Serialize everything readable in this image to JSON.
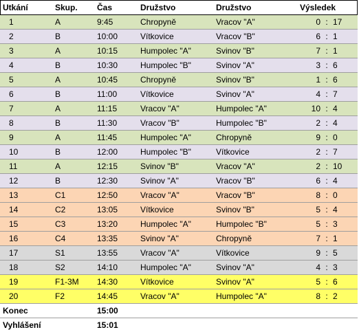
{
  "headers": {
    "match": "Utkání",
    "group": "Skup.",
    "time": "Čas",
    "team1": "Družstvo",
    "team2": "Družstvo",
    "result": "Výsledek"
  },
  "rows": [
    {
      "no": "1",
      "group": "A",
      "time": "9:45",
      "team1": "Chropyně",
      "team2": "Vracov \"A\"",
      "s1": "0",
      "s2": "17",
      "color": "green"
    },
    {
      "no": "2",
      "group": "B",
      "time": "10:00",
      "team1": "Vítkovice",
      "team2": "Vracov \"B\"",
      "s1": "6",
      "s2": "1",
      "color": "lav"
    },
    {
      "no": "3",
      "group": "A",
      "time": "10:15",
      "team1": "Humpolec \"A\"",
      "team2": "Svinov \"B\"",
      "s1": "7",
      "s2": "1",
      "color": "green"
    },
    {
      "no": "4",
      "group": "B",
      "time": "10:30",
      "team1": "Humpolec \"B\"",
      "team2": "Svinov \"A\"",
      "s1": "3",
      "s2": "6",
      "color": "lav"
    },
    {
      "no": "5",
      "group": "A",
      "time": "10:45",
      "team1": "Chropyně",
      "team2": "Svinov \"B\"",
      "s1": "1",
      "s2": "6",
      "color": "green"
    },
    {
      "no": "6",
      "group": "B",
      "time": "11:00",
      "team1": "Vítkovice",
      "team2": "Svinov \"A\"",
      "s1": "4",
      "s2": "7",
      "color": "lav"
    },
    {
      "no": "7",
      "group": "A",
      "time": "11:15",
      "team1": "Vracov \"A\"",
      "team2": "Humpolec \"A\"",
      "s1": "10",
      "s2": "4",
      "color": "green"
    },
    {
      "no": "8",
      "group": "B",
      "time": "11:30",
      "team1": "Vracov \"B\"",
      "team2": "Humpolec \"B\"",
      "s1": "2",
      "s2": "4",
      "color": "lav"
    },
    {
      "no": "9",
      "group": "A",
      "time": "11:45",
      "team1": "Humpolec \"A\"",
      "team2": "Chropyně",
      "s1": "9",
      "s2": "0",
      "color": "green"
    },
    {
      "no": "10",
      "group": "B",
      "time": "12:00",
      "team1": "Humpolec \"B\"",
      "team2": "Vítkovice",
      "s1": "2",
      "s2": "7",
      "color": "lav"
    },
    {
      "no": "11",
      "group": "A",
      "time": "12:15",
      "team1": "Svinov \"B\"",
      "team2": "Vracov \"A\"",
      "s1": "2",
      "s2": "10",
      "color": "green"
    },
    {
      "no": "12",
      "group": "B",
      "time": "12:30",
      "team1": "Svinov \"A\"",
      "team2": "Vracov \"B\"",
      "s1": "6",
      "s2": "4",
      "color": "lav"
    },
    {
      "no": "13",
      "group": "C1",
      "time": "12:50",
      "team1": "Vracov \"A\"",
      "team2": "Vracov \"B\"",
      "s1": "8",
      "s2": "0",
      "color": "orange"
    },
    {
      "no": "14",
      "group": "C2",
      "time": "13:05",
      "team1": "Vítkovice",
      "team2": "Svinov \"B\"",
      "s1": "5",
      "s2": "4",
      "color": "orange"
    },
    {
      "no": "15",
      "group": "C3",
      "time": "13:20",
      "team1": "Humpolec \"A\"",
      "team2": "Humpolec \"B\"",
      "s1": "5",
      "s2": "3",
      "color": "orange"
    },
    {
      "no": "16",
      "group": "C4",
      "time": "13:35",
      "team1": "Svinov \"A\"",
      "team2": "Chropyně",
      "s1": "7",
      "s2": "1",
      "color": "orange"
    },
    {
      "no": "17",
      "group": "S1",
      "time": "13:55",
      "team1": "Vracov \"A\"",
      "team2": "Vítkovice",
      "s1": "9",
      "s2": "5",
      "color": "gray"
    },
    {
      "no": "18",
      "group": "S2",
      "time": "14:10",
      "team1": "Humpolec \"A\"",
      "team2": "Svinov \"A\"",
      "s1": "4",
      "s2": "3",
      "color": "gray"
    },
    {
      "no": "19",
      "group": "F1-3M",
      "time": "14:30",
      "team1": "Vítkovice",
      "team2": "Svinov \"A\"",
      "s1": "5",
      "s2": "6",
      "color": "yellow"
    },
    {
      "no": "20",
      "group": "F2",
      "time": "14:45",
      "team1": "Vracov \"A\"",
      "team2": "Humpolec \"A\"",
      "s1": "8",
      "s2": "2",
      "color": "yellow"
    }
  ],
  "score_separator": ":",
  "footer": [
    {
      "label": "Konec",
      "time": "15:00"
    },
    {
      "label": "Vyhlášení",
      "time": "15:01"
    }
  ],
  "row_colors": {
    "green": "#d8e4bc",
    "lav": "#e4dfec",
    "orange": "#fcd5b4",
    "gray": "#d9d9d9",
    "yellow": "#ffff66"
  }
}
